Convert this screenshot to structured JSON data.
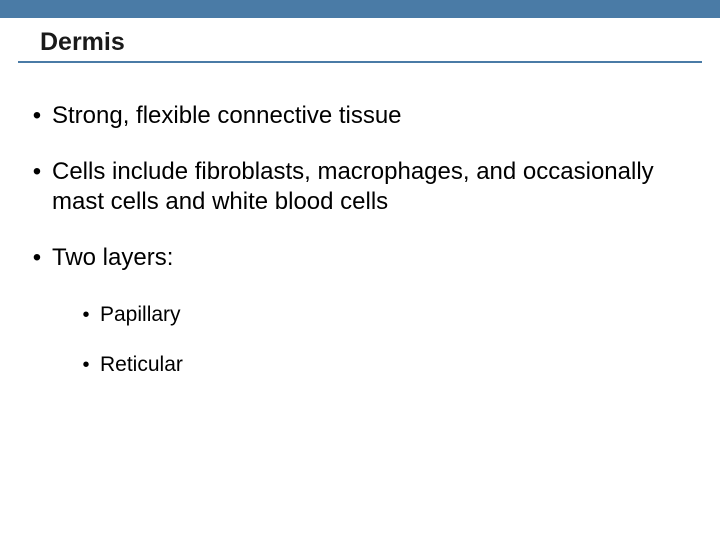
{
  "colors": {
    "header_bar": "#4a7ba6",
    "title_underline": "#4a7ba6",
    "background": "#ffffff",
    "text": "#000000"
  },
  "typography": {
    "title_fontsize": 25,
    "title_weight": "bold",
    "bullet_fontsize": 24,
    "sub_bullet_fontsize": 21,
    "font_family": "Arial"
  },
  "slide": {
    "title": "Dermis",
    "bullets": [
      {
        "text": "Strong, flexible connective tissue"
      },
      {
        "text": "Cells include fibroblasts, macrophages, and occasionally mast cells and white blood cells"
      },
      {
        "text": "Two layers:"
      }
    ],
    "sub_bullets": [
      {
        "text": "Papillary"
      },
      {
        "text": "Reticular"
      }
    ]
  }
}
